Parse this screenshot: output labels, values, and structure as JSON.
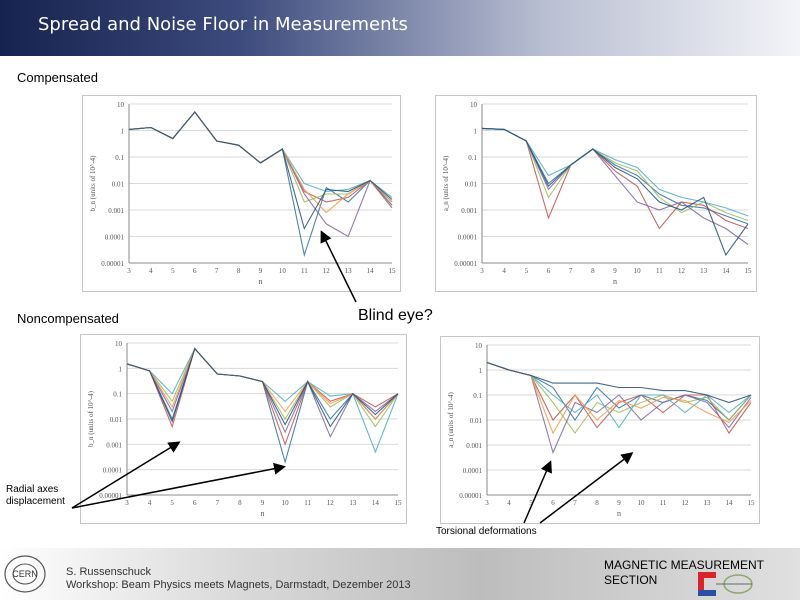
{
  "header": {
    "title": "Spread and Noise Floor in Measurements"
  },
  "labels": {
    "compensated": "Compensated",
    "noncompensated": "Noncompensated",
    "blind_eye": "Blind eye?",
    "radial": "Radial axes displacement",
    "torsional": "Torsional deformations"
  },
  "footer": {
    "author": "S. Russenschuck",
    "event": "Workshop: Beam Physics meets Magnets, Darmstadt, Dezember 2013",
    "section": "MAGNETIC MEASUREMENT SECTION",
    "logo_text": "CERN"
  },
  "chart_data": [
    {
      "type": "line",
      "xlabel": "n",
      "ylabel": "b_n (units of 10^-4)",
      "x": [
        3,
        4,
        5,
        6,
        7,
        8,
        9,
        10,
        11,
        12,
        13,
        14,
        15
      ],
      "y_ticks": [
        "10",
        "1",
        "0.1",
        "0.01",
        "0.001",
        "0.0001",
        "0.00001"
      ],
      "ylim": [
        1e-05,
        10
      ],
      "log_y": true,
      "series": [
        {
          "color": "#2e6f9c",
          "values": [
            1.1,
            1.3,
            0.5,
            5,
            0.4,
            0.28,
            0.06,
            0.2,
            2e-05,
            0.007,
            0.002,
            0.013,
            0.0015
          ]
        },
        {
          "color": "#c0504d",
          "values": [
            1.1,
            1.3,
            0.5,
            5,
            0.4,
            0.28,
            0.06,
            0.2,
            0.005,
            0.002,
            0.003,
            0.013,
            0.0012
          ]
        },
        {
          "color": "#9bbb59",
          "values": [
            1.1,
            1.3,
            0.5,
            5,
            0.4,
            0.28,
            0.06,
            0.2,
            0.002,
            0.004,
            0.004,
            0.013,
            0.002
          ]
        },
        {
          "color": "#8064a2",
          "values": [
            1.1,
            1.3,
            0.5,
            5,
            0.4,
            0.28,
            0.06,
            0.2,
            0.004,
            0.0003,
            0.0001,
            0.013,
            0.002
          ]
        },
        {
          "color": "#4bacc6",
          "values": [
            1.1,
            1.3,
            0.5,
            5,
            0.4,
            0.28,
            0.06,
            0.2,
            0.01,
            0.005,
            0.006,
            0.013,
            0.003
          ]
        },
        {
          "color": "#f79646",
          "values": [
            1.1,
            1.3,
            0.5,
            5,
            0.4,
            0.28,
            0.06,
            0.2,
            0.006,
            0.0008,
            0.004,
            0.013,
            0.002
          ]
        },
        {
          "color": "#1f4e79",
          "values": [
            1.1,
            1.3,
            0.5,
            5,
            0.4,
            0.28,
            0.06,
            0.2,
            0.0002,
            0.006,
            0.005,
            0.013,
            0.0025
          ]
        }
      ]
    },
    {
      "type": "line",
      "xlabel": "n",
      "ylabel": "a_n (units of 10^-4)",
      "x": [
        3,
        4,
        5,
        6,
        7,
        8,
        9,
        10,
        11,
        12,
        13,
        14,
        15
      ],
      "y_ticks": [
        "10",
        "1",
        "0.1",
        "0.01",
        "0.001",
        "0.0001",
        "0.00001"
      ],
      "ylim": [
        1e-05,
        10
      ],
      "log_y": true,
      "series": [
        {
          "color": "#2e6f9c",
          "values": [
            1.2,
            1.1,
            0.4,
            0.01,
            0.05,
            0.2,
            0.05,
            0.02,
            0.004,
            0.0015,
            0.0012,
            0.0006,
            0.0003
          ]
        },
        {
          "color": "#c0504d",
          "values": [
            1.2,
            1.1,
            0.4,
            0.0005,
            0.05,
            0.2,
            0.03,
            0.008,
            0.0002,
            0.002,
            0.0015,
            0.0004,
            0.0002
          ]
        },
        {
          "color": "#9bbb59",
          "values": [
            1.2,
            1.1,
            0.4,
            0.003,
            0.05,
            0.2,
            0.06,
            0.03,
            0.003,
            0.0008,
            0.002,
            0.0008,
            0.0004
          ]
        },
        {
          "color": "#8064a2",
          "values": [
            1.2,
            1.1,
            0.4,
            0.006,
            0.05,
            0.2,
            0.02,
            0.002,
            0.001,
            0.002,
            0.0005,
            0.0002,
            5e-05
          ]
        },
        {
          "color": "#4bacc6",
          "values": [
            1.2,
            1.1,
            0.4,
            0.02,
            0.05,
            0.2,
            0.08,
            0.04,
            0.006,
            0.003,
            0.002,
            0.0012,
            0.0006
          ]
        },
        {
          "color": "#1f4e79",
          "values": [
            1.2,
            1.1,
            0.4,
            0.008,
            0.05,
            0.2,
            0.04,
            0.015,
            0.002,
            0.001,
            0.003,
            2e-05,
            0.0003
          ]
        }
      ]
    },
    {
      "type": "line",
      "xlabel": "n",
      "ylabel": "b_n (units of 10^-4)",
      "x": [
        3,
        4,
        5,
        6,
        7,
        8,
        9,
        10,
        11,
        12,
        13,
        14,
        15
      ],
      "y_ticks": [
        "10",
        "1",
        "0.1",
        "0.01",
        "0.001",
        "0.0001",
        "0.00001"
      ],
      "ylim": [
        1e-05,
        10
      ],
      "log_y": true,
      "series": [
        {
          "color": "#2e6f9c",
          "values": [
            1.5,
            0.8,
            0.01,
            6,
            0.6,
            0.5,
            0.3,
            0.0002,
            0.3,
            0.01,
            0.1,
            0.01,
            0.1
          ]
        },
        {
          "color": "#c0504d",
          "values": [
            1.5,
            0.8,
            0.005,
            6,
            0.6,
            0.5,
            0.3,
            0.001,
            0.3,
            0.05,
            0.1,
            0.03,
            0.1
          ]
        },
        {
          "color": "#9bbb59",
          "values": [
            1.5,
            0.8,
            0.05,
            6,
            0.6,
            0.5,
            0.3,
            0.01,
            0.3,
            0.03,
            0.1,
            0.005,
            0.1
          ]
        },
        {
          "color": "#8064a2",
          "values": [
            1.5,
            0.8,
            0.02,
            6,
            0.6,
            0.5,
            0.3,
            0.003,
            0.3,
            0.002,
            0.1,
            0.02,
            0.1
          ]
        },
        {
          "color": "#4bacc6",
          "values": [
            1.5,
            0.8,
            0.1,
            6,
            0.6,
            0.5,
            0.3,
            0.05,
            0.3,
            0.08,
            0.1,
            0.0005,
            0.1
          ]
        },
        {
          "color": "#f79646",
          "values": [
            1.5,
            0.8,
            0.03,
            6,
            0.6,
            0.5,
            0.3,
            0.02,
            0.3,
            0.04,
            0.1,
            0.01,
            0.1
          ]
        },
        {
          "color": "#1f4e79",
          "values": [
            1.5,
            0.8,
            0.008,
            6,
            0.6,
            0.5,
            0.3,
            0.006,
            0.3,
            0.005,
            0.1,
            0.015,
            0.1
          ]
        }
      ]
    },
    {
      "type": "line",
      "xlabel": "n",
      "ylabel": "a_n (units of 10^-4)",
      "x": [
        3,
        4,
        5,
        6,
        7,
        8,
        9,
        10,
        11,
        12,
        13,
        14,
        15
      ],
      "y_ticks": [
        "10",
        "1",
        "0.1",
        "0.01",
        "0.001",
        "0.0001",
        "0.00001"
      ],
      "ylim": [
        1e-05,
        10
      ],
      "log_y": true,
      "series": [
        {
          "color": "#2e6f9c",
          "values": [
            2,
            1,
            0.6,
            0.2,
            0.01,
            0.2,
            0.03,
            0.1,
            0.05,
            0.1,
            0.06,
            0.01,
            0.1
          ]
        },
        {
          "color": "#c0504d",
          "values": [
            2,
            1,
            0.6,
            0.01,
            0.1,
            0.005,
            0.05,
            0.1,
            0.02,
            0.1,
            0.1,
            0.003,
            0.05
          ]
        },
        {
          "color": "#9bbb59",
          "values": [
            2,
            1,
            0.6,
            0.05,
            0.003,
            0.05,
            0.02,
            0.05,
            0.1,
            0.05,
            0.08,
            0.01,
            0.1
          ]
        },
        {
          "color": "#8064a2",
          "values": [
            2,
            1,
            0.6,
            0.0005,
            0.05,
            0.02,
            0.1,
            0.01,
            0.05,
            0.1,
            0.05,
            0.005,
            0.08
          ]
        },
        {
          "color": "#4bacc6",
          "values": [
            2,
            1,
            0.6,
            0.1,
            0.02,
            0.1,
            0.005,
            0.1,
            0.1,
            0.02,
            0.1,
            0.02,
            0.1
          ]
        },
        {
          "color": "#f79646",
          "values": [
            2,
            1,
            0.6,
            0.003,
            0.1,
            0.01,
            0.06,
            0.03,
            0.08,
            0.06,
            0.02,
            0.008,
            0.06
          ]
        },
        {
          "color": "#1f4e79",
          "values": [
            2,
            1,
            0.6,
            0.3,
            0.3,
            0.3,
            0.2,
            0.2,
            0.15,
            0.15,
            0.1,
            0.05,
            0.1
          ]
        }
      ]
    }
  ]
}
